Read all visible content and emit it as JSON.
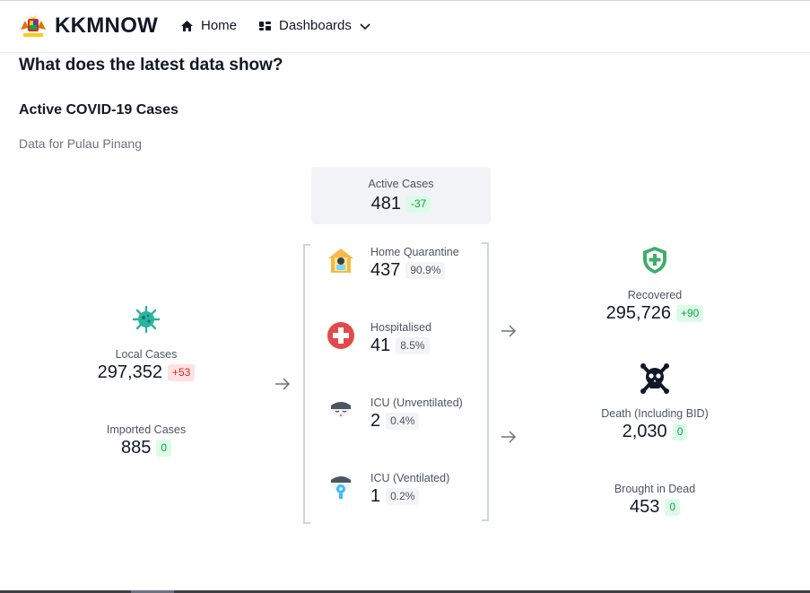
{
  "header": {
    "brand": "KKMNOW",
    "nav": {
      "home": "Home",
      "dashboards": "Dashboards"
    }
  },
  "section": {
    "title": "What does the latest data show?",
    "subtitle": "Active COVID-19 Cases",
    "location": "Data for Pulau Pinang"
  },
  "local": {
    "label": "Local Cases",
    "value": "297,352",
    "change": "+53"
  },
  "imported": {
    "label": "Imported Cases",
    "value": "885",
    "change": "0"
  },
  "active": {
    "label": "Active Cases",
    "value": "481",
    "change": "-37"
  },
  "breakdown": [
    {
      "label": "Home Quarantine",
      "value": "437",
      "pct": "90.9%"
    },
    {
      "label": "Hospitalised",
      "value": "41",
      "pct": "8.5%"
    },
    {
      "label": "ICU (Unventilated)",
      "value": "2",
      "pct": "0.4%"
    },
    {
      "label": "ICU (Ventilated)",
      "value": "1",
      "pct": "0.2%"
    }
  ],
  "recovered": {
    "label": "Recovered",
    "value": "295,726",
    "change": "+90"
  },
  "death": {
    "label": "Death (Including BID)",
    "value": "2,030",
    "change": "0"
  },
  "bid": {
    "label": "Brought in Dead",
    "value": "453",
    "change": "0"
  },
  "colors": {
    "virus": "#2bb3a0",
    "shield": "#3fae6b",
    "cross": "#e24a4a",
    "skull": "#111827"
  },
  "icons": [
    "malaysia-crest-icon",
    "home-icon",
    "dashboard-icon",
    "chevron-down-icon",
    "virus-icon",
    "house-mask-icon",
    "medical-cross-icon",
    "icu-face-icon",
    "ventilator-face-icon",
    "shield-plus-icon",
    "skull-crossbones-icon",
    "arrow-right-icon"
  ]
}
